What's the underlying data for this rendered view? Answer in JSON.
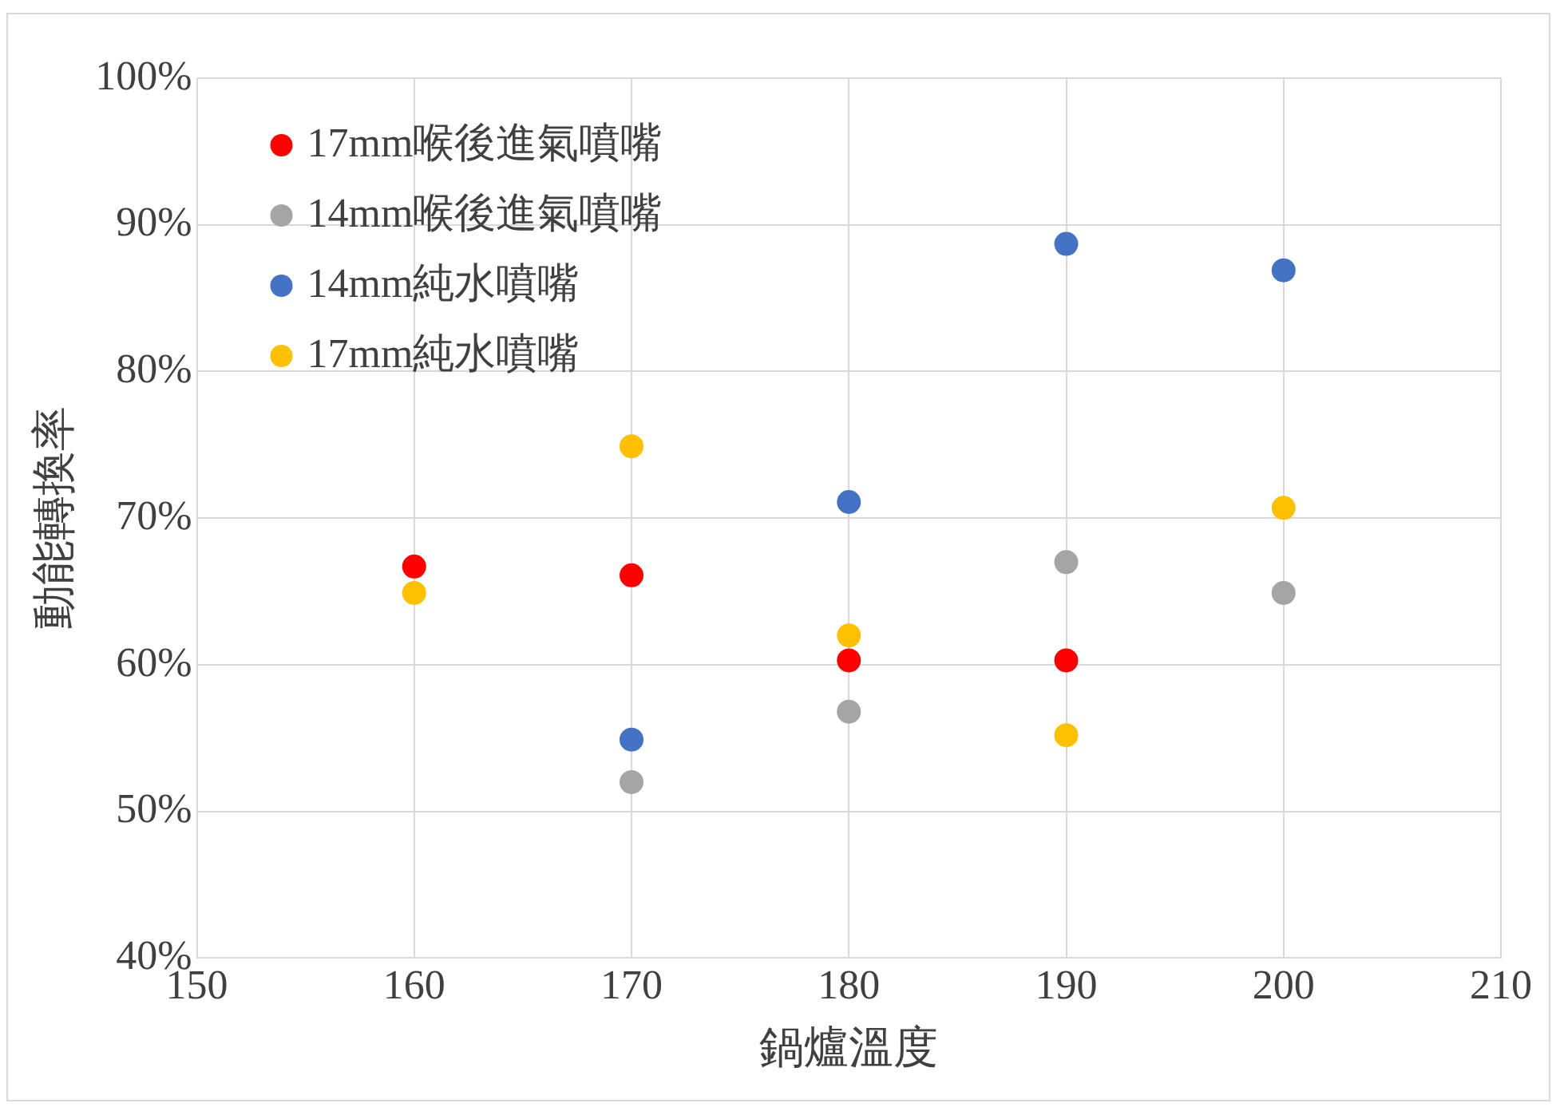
{
  "chart_data": {
    "type": "scatter",
    "xlabel": "鍋爐溫度",
    "ylabel": "動能轉換率",
    "xlim": [
      150,
      210
    ],
    "xticks": [
      150,
      160,
      170,
      180,
      190,
      200,
      210
    ],
    "ylim": [
      40,
      100
    ],
    "yticks": [
      {
        "value": 40,
        "label": "40%"
      },
      {
        "value": 50,
        "label": "50%"
      },
      {
        "value": 60,
        "label": "60%"
      },
      {
        "value": 70,
        "label": "70%"
      },
      {
        "value": 80,
        "label": "80%"
      },
      {
        "value": 90,
        "label": "90%"
      },
      {
        "value": 100,
        "label": "100%"
      }
    ],
    "grid": true,
    "legend": "top left",
    "marker": "circle",
    "series": [
      {
        "name": "17mm喉後進氣噴嘴",
        "color": "#ff0000",
        "x": [
          160,
          170,
          180,
          190
        ],
        "values": [
          66.7,
          66.1,
          60.3,
          60.3
        ]
      },
      {
        "name": "14mm喉後進氣噴嘴",
        "color": "#a5a5a5",
        "x": [
          170,
          180,
          190,
          200
        ],
        "values": [
          52.0,
          56.8,
          67.0,
          64.9
        ]
      },
      {
        "name": "14mm純水噴嘴",
        "color": "#4472c4",
        "x": [
          170,
          180,
          190,
          200
        ],
        "values": [
          54.9,
          71.1,
          88.7,
          86.9
        ]
      },
      {
        "name": "17mm純水噴嘴",
        "color": "#ffc000",
        "x": [
          160,
          170,
          180,
          190,
          200
        ],
        "values": [
          64.9,
          74.9,
          62.0,
          55.2,
          70.7
        ]
      }
    ]
  }
}
